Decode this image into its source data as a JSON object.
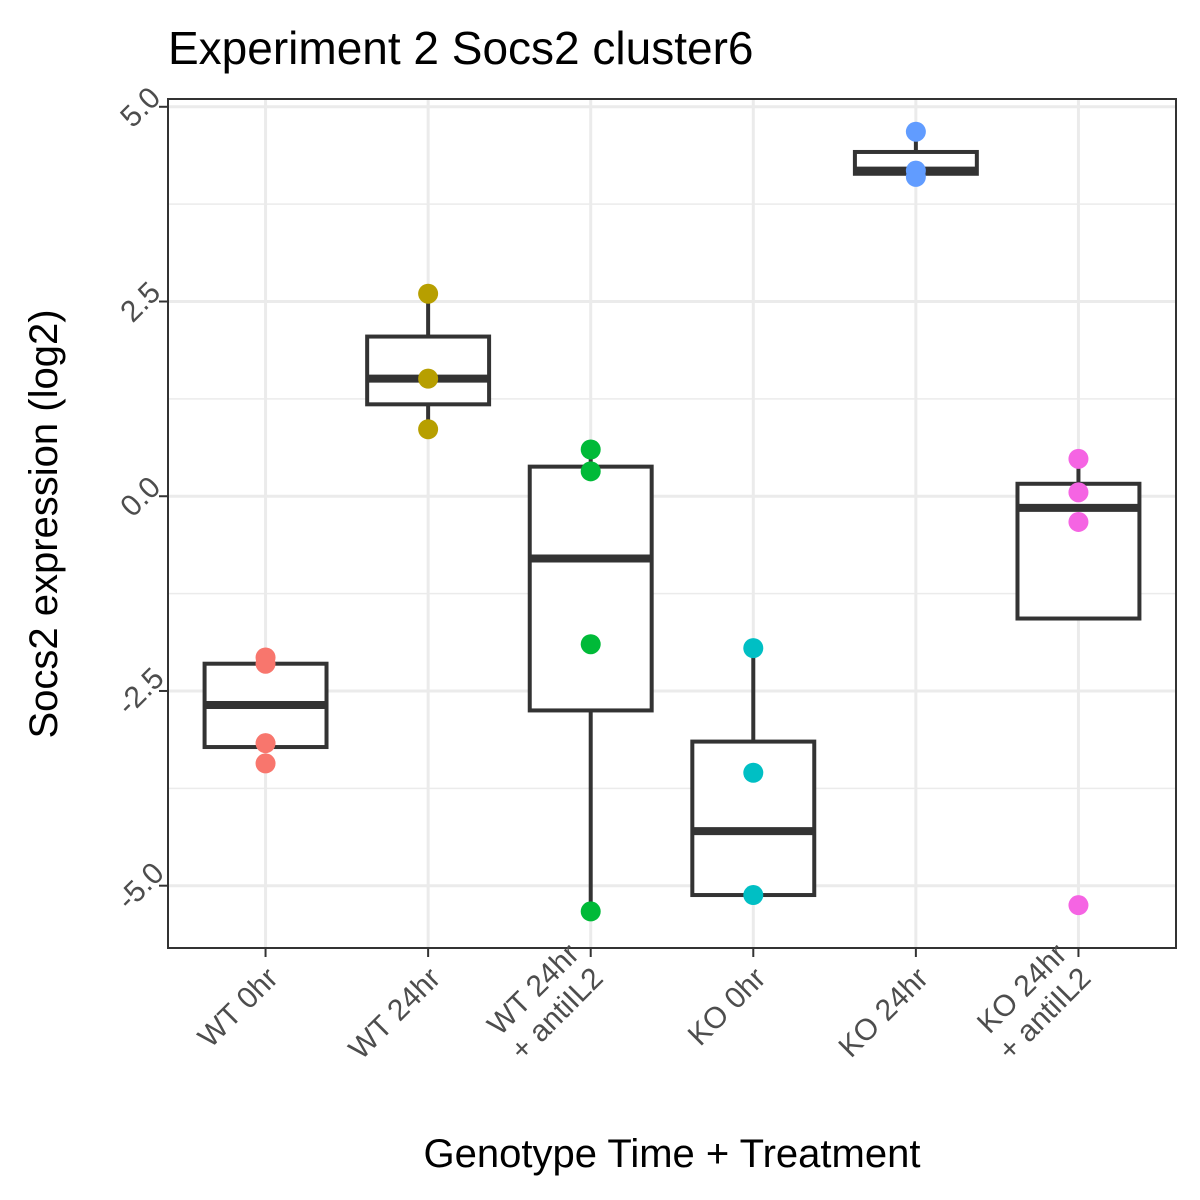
{
  "chart_data": {
    "type": "box",
    "title": "Experiment 2 Socs2 cluster6",
    "xlabel": "Genotype Time + Treatment",
    "ylabel": "Socs2 expression (log2)",
    "ylim": [
      -5.8,
      5.1
    ],
    "y_ticks": [
      -5.0,
      -2.5,
      0.0,
      2.5,
      5.0
    ],
    "y_tick_labels": [
      "-5.0",
      "-2.5",
      "0.0",
      "2.5",
      "5.0"
    ],
    "grid": true,
    "categories": [
      {
        "lines": [
          "WT 0hr"
        ]
      },
      {
        "lines": [
          "WT 24hr"
        ]
      },
      {
        "lines": [
          "WT 24hr",
          "+ antiIL2"
        ]
      },
      {
        "lines": [
          "KO 0hr"
        ]
      },
      {
        "lines": [
          "KO 24hr"
        ]
      },
      {
        "lines": [
          "KO 24hr",
          "+ antiIL2"
        ]
      }
    ],
    "groups": [
      {
        "color": "#F8766D",
        "q1": -3.22,
        "median": -2.68,
        "q3": -2.15,
        "whisker_low": -3.22,
        "whisker_high": -2.15,
        "points": [
          -2.07,
          -2.15,
          -3.17,
          -3.43
        ]
      },
      {
        "color": "#B79F00",
        "q1": 1.18,
        "median": 1.51,
        "q3": 2.05,
        "whisker_low": 0.86,
        "whisker_high": 2.6,
        "points": [
          2.6,
          1.51,
          0.86
        ]
      },
      {
        "color": "#00BA38",
        "q1": -2.75,
        "median": -0.8,
        "q3": 0.38,
        "whisker_low": -5.33,
        "whisker_high": 0.6,
        "points": [
          0.6,
          0.32,
          -1.9,
          -5.33
        ]
      },
      {
        "color": "#00BFC4",
        "q1": -5.12,
        "median": -4.3,
        "q3": -3.15,
        "whisker_low": -5.12,
        "whisker_high": -1.95,
        "points": [
          -1.95,
          -3.55,
          -5.12
        ]
      },
      {
        "color": "#619CFF",
        "q1": 4.14,
        "median": 4.18,
        "q3": 4.42,
        "whisker_low": 4.1,
        "whisker_high": 4.68,
        "points": [
          4.68,
          4.18,
          4.1
        ]
      },
      {
        "color": "#F564E3",
        "q1": -1.57,
        "median": -0.15,
        "q3": 0.16,
        "whisker_low": -1.57,
        "whisker_high": 0.48,
        "points": [
          0.48,
          0.05,
          -0.33,
          -5.25
        ]
      }
    ]
  }
}
